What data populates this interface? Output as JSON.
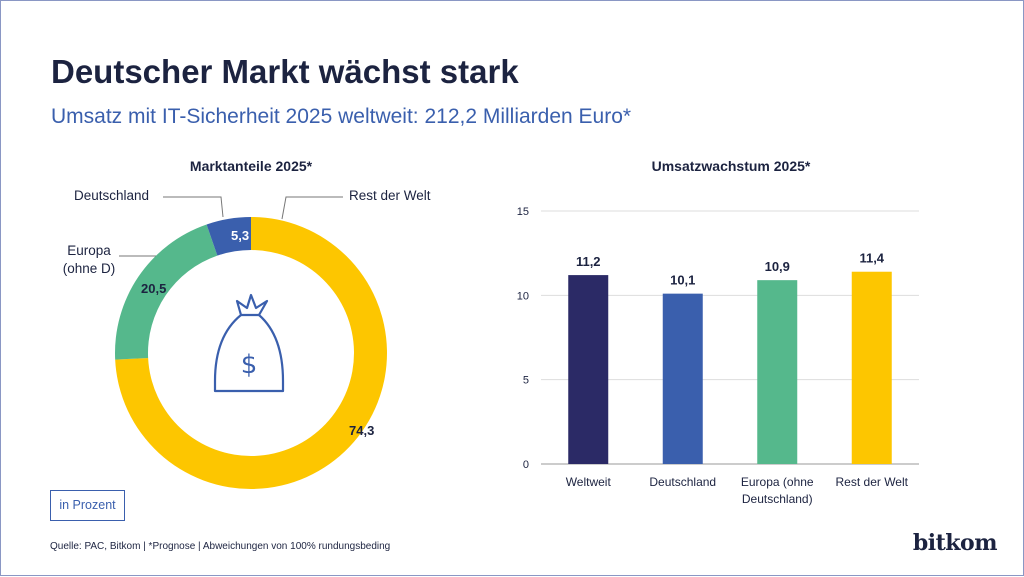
{
  "header": {
    "title": "Deutscher Markt wächst stark",
    "subtitle": "Umsatz mit IT-Sicherheit 2025 weltweit: 212,2 Milliarden Euro*"
  },
  "unit_label": "in Prozent",
  "source": "Quelle: PAC, Bitkom | *Prognose | Abweichungen von 100% rundungsbeding",
  "logo": "bitkom",
  "chart_data": [
    {
      "type": "pie",
      "title": "Marktanteile 2025*",
      "donut": true,
      "center_icon": "money-bag-icon",
      "slices": [
        {
          "label": "Rest der Welt",
          "value": 74.3,
          "display": "74,3",
          "color": "#fdc600"
        },
        {
          "label": "Europa (ohne D)",
          "value": 20.5,
          "display": "20,5",
          "color": "#55b88c"
        },
        {
          "label": "Deutschland",
          "value": 5.3,
          "display": "5,3",
          "color": "#3a5fad"
        }
      ]
    },
    {
      "type": "bar",
      "title": "Umsatzwachstum 2025*",
      "ylim": [
        0,
        15
      ],
      "yticks": [
        0,
        5,
        10,
        15
      ],
      "grid": true,
      "categories": [
        "Weltweit",
        "Deutschland",
        "Europa (ohne Deutschland)",
        "Rest der Welt"
      ],
      "values": [
        11.2,
        10.1,
        10.9,
        11.4
      ],
      "display": [
        "11,2",
        "10,1",
        "10,9",
        "11,4"
      ],
      "colors": [
        "#2b2a66",
        "#3a5fad",
        "#55b88c",
        "#fdc600"
      ]
    }
  ]
}
